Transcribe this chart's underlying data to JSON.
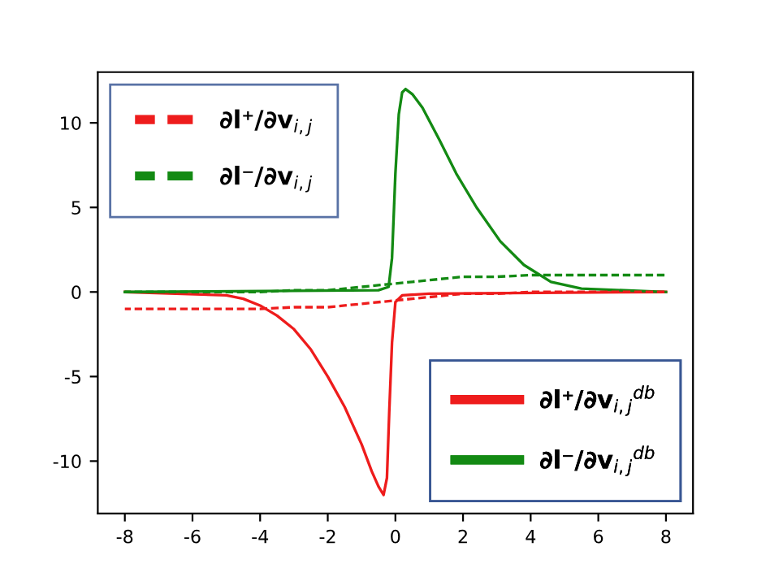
{
  "chart_data": {
    "type": "line",
    "xlim": [
      -8.8,
      8.8
    ],
    "ylim": [
      -13.1,
      13.0
    ],
    "xticks": [
      -8,
      -6,
      -4,
      -2,
      0,
      2,
      4,
      6,
      8
    ],
    "yticks": [
      -10,
      -5,
      0,
      5,
      10
    ],
    "grid": false,
    "legend": "top left",
    "marker": "none",
    "series": [
      {
        "name": "∂l⁺/∂v$_{i,j}$",
        "color": "#ee1c1c",
        "line_style": "dashed",
        "x": [
          -8,
          -4,
          -3,
          -2,
          -1.5,
          -1,
          -0.5,
          0,
          0.5,
          1,
          1.5,
          2,
          3,
          4,
          8
        ],
        "values": [
          -1.0,
          -1.0,
          -0.9,
          -0.9,
          -0.8,
          -0.7,
          -0.6,
          -0.5,
          -0.4,
          -0.3,
          -0.2,
          -0.1,
          -0.1,
          0.0,
          0.0
        ]
      },
      {
        "name": "∂l⁻/∂v$_{i,j}$",
        "color": "#138a13",
        "line_style": "dashed",
        "x": [
          -8,
          -4,
          -3,
          -2,
          -1.5,
          -1,
          -0.5,
          0,
          0.5,
          1,
          1.5,
          2,
          3,
          4,
          8
        ],
        "values": [
          0.0,
          0.0,
          0.1,
          0.1,
          0.2,
          0.3,
          0.4,
          0.5,
          0.6,
          0.7,
          0.8,
          0.9,
          0.9,
          1.0,
          1.0
        ]
      },
      {
        "name": "∂l⁺/∂v$_{i,j}$$^{db}$",
        "color": "#ee1c1c",
        "line_style": "solid",
        "x": [
          -8,
          -5,
          -4.5,
          -4,
          -3.5,
          -3,
          -2.5,
          -2,
          -1.5,
          -1,
          -0.7,
          -0.5,
          -0.35,
          -0.25,
          -0.18,
          -0.1,
          0,
          0.2,
          1,
          8
        ],
        "values": [
          0.0,
          -0.2,
          -0.4,
          -0.8,
          -1.4,
          -2.2,
          -3.4,
          -5.0,
          -6.8,
          -9.0,
          -10.6,
          -11.5,
          -12.0,
          -11.0,
          -7.0,
          -3.0,
          -0.6,
          -0.2,
          -0.1,
          0.0
        ]
      },
      {
        "name": "∂l⁻/∂v$_{i,j}$$^{db}$",
        "color": "#138a13",
        "line_style": "solid",
        "x": [
          -8,
          -0.5,
          -0.2,
          -0.1,
          0,
          0.1,
          0.2,
          0.3,
          0.5,
          0.8,
          1.3,
          1.8,
          2.4,
          3.1,
          3.8,
          4.6,
          5.5,
          8
        ],
        "values": [
          0.0,
          0.1,
          0.3,
          2.0,
          7.0,
          10.5,
          11.8,
          12.0,
          11.7,
          10.9,
          9.0,
          7.0,
          5.0,
          3.0,
          1.6,
          0.6,
          0.2,
          0.0
        ]
      }
    ]
  }
}
